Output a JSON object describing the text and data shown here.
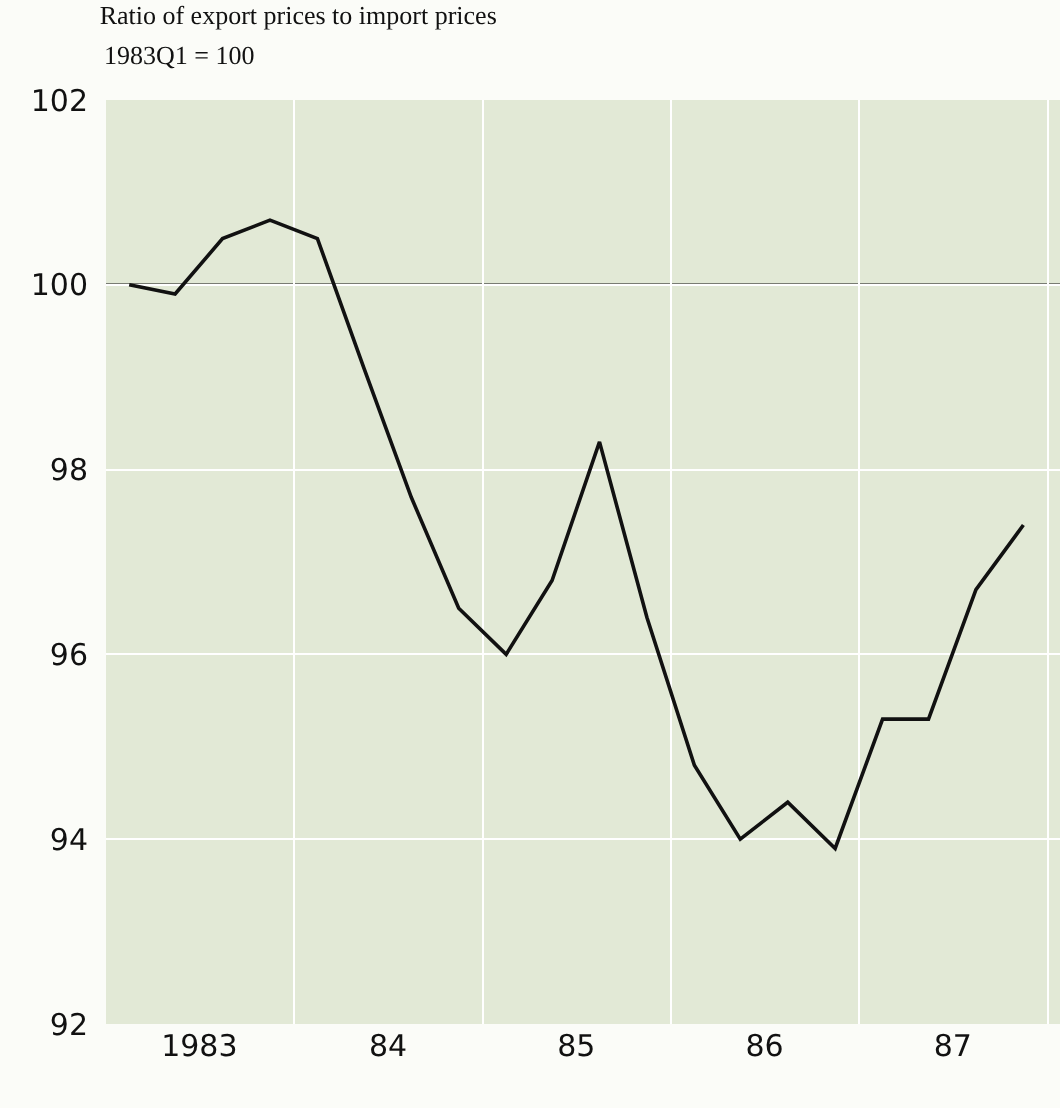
{
  "chart_data": {
    "type": "line",
    "title": "Ratio of export prices to import prices",
    "subtitle": "1983Q1 = 100",
    "x": [
      "1983-02-15",
      "1983-05-15",
      "1983-08-15",
      "1983-11-15",
      "1984-02-15",
      "1984-05-15",
      "1984-08-15",
      "1984-11-15",
      "1985-02-15",
      "1985-05-15",
      "1985-08-15",
      "1985-11-15",
      "1986-02-15",
      "1986-05-15",
      "1986-08-15",
      "1986-11-15",
      "1987-02-15",
      "1987-05-15",
      "1987-08-15",
      "1987-11-15"
    ],
    "series": [
      {
        "color": "#111111",
        "values": [
          100.0,
          99.9,
          100.5,
          100.7,
          100.5,
          99.1,
          97.7,
          96.5,
          96.0,
          96.8,
          98.3,
          96.4,
          94.8,
          94.0,
          94.4,
          93.9,
          95.3,
          95.3,
          96.7,
          97.4
        ]
      }
    ],
    "xlim": [
      "1983-01-01",
      "1988-01-25"
    ],
    "xticks": [
      {
        "value": "1983-01-01",
        "label": null
      },
      {
        "value": "1983-07-01",
        "label": "1983"
      },
      {
        "value": "1984-01-01",
        "label": null
      },
      {
        "value": "1984-07-01",
        "label": "84"
      },
      {
        "value": "1985-01-01",
        "label": null
      },
      {
        "value": "1985-07-01",
        "label": "85"
      },
      {
        "value": "1986-01-01",
        "label": null
      },
      {
        "value": "1986-07-01",
        "label": "86"
      },
      {
        "value": "1987-01-01",
        "label": null
      },
      {
        "value": "1987-07-01",
        "label": "87"
      },
      {
        "value": "1988-01-01",
        "label": null
      }
    ],
    "ylim": [
      92,
      102
    ],
    "yticks": [
      92,
      94,
      96,
      98,
      100,
      102
    ],
    "ref_lines": [
      {
        "axis": "y",
        "value": 100,
        "color": "#111111"
      }
    ],
    "grid": true,
    "marker": "none",
    "line_style": "solid"
  }
}
